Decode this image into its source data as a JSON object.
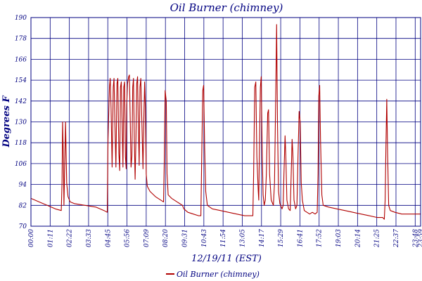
{
  "chart_data": {
    "type": "line",
    "title": "Oil Burner (chimney)",
    "xlabel": "12/19/11 (EST)",
    "ylabel": "Degrees F",
    "ylim": [
      70,
      190
    ],
    "xlim": [
      0,
      1440
    ],
    "yticks": [
      70,
      82,
      94,
      106,
      118,
      130,
      142,
      154,
      166,
      178,
      190
    ],
    "xticks": [
      {
        "t": 0,
        "label": "00:00"
      },
      {
        "t": 71,
        "label": "01:11"
      },
      {
        "t": 142,
        "label": "02:22"
      },
      {
        "t": 213,
        "label": "03:33"
      },
      {
        "t": 284,
        "label": "04:45"
      },
      {
        "t": 355,
        "label": "05:56"
      },
      {
        "t": 426,
        "label": "07:09"
      },
      {
        "t": 497,
        "label": "08:20"
      },
      {
        "t": 568,
        "label": "09:31"
      },
      {
        "t": 639,
        "label": "10:43"
      },
      {
        "t": 710,
        "label": "11:54"
      },
      {
        "t": 781,
        "label": "13:05"
      },
      {
        "t": 852,
        "label": "14:17"
      },
      {
        "t": 923,
        "label": "15:29"
      },
      {
        "t": 994,
        "label": "16:41"
      },
      {
        "t": 1065,
        "label": "17:52"
      },
      {
        "t": 1136,
        "label": "19:03"
      },
      {
        "t": 1207,
        "label": "20:14"
      },
      {
        "t": 1278,
        "label": "21:25"
      },
      {
        "t": 1349,
        "label": "22:37"
      },
      {
        "t": 1420,
        "label": "23:48"
      },
      {
        "t": 1440,
        "label": "23:59"
      }
    ],
    "grid": true,
    "legend": "bottom-center",
    "color": "#b00000",
    "series": [
      {
        "name": "Oil Burner (chimney)",
        "points": [
          [
            0,
            86
          ],
          [
            30,
            84
          ],
          [
            60,
            82
          ],
          [
            90,
            80
          ],
          [
            112,
            79
          ],
          [
            115,
            95
          ],
          [
            117,
            130
          ],
          [
            120,
            108
          ],
          [
            122,
            82
          ],
          [
            126,
            115
          ],
          [
            128,
            130
          ],
          [
            132,
            95
          ],
          [
            137,
            87
          ],
          [
            145,
            84
          ],
          [
            160,
            83
          ],
          [
            200,
            82
          ],
          [
            240,
            81
          ],
          [
            270,
            79
          ],
          [
            282,
            78
          ],
          [
            285,
            120
          ],
          [
            290,
            150
          ],
          [
            293,
            155
          ],
          [
            296,
            138
          ],
          [
            300,
            104
          ],
          [
            304,
            150
          ],
          [
            307,
            155
          ],
          [
            311,
            125
          ],
          [
            314,
            104
          ],
          [
            318,
            152
          ],
          [
            321,
            155
          ],
          [
            325,
            112
          ],
          [
            328,
            102
          ],
          [
            331,
            150
          ],
          [
            334,
            153
          ],
          [
            337,
            128
          ],
          [
            340,
            104
          ],
          [
            343,
            150
          ],
          [
            346,
            153
          ],
          [
            349,
            110
          ],
          [
            352,
            103
          ],
          [
            354,
            140
          ],
          [
            357,
            152
          ],
          [
            361,
            156
          ],
          [
            364,
            157
          ],
          [
            367,
            130
          ],
          [
            370,
            104
          ],
          [
            373,
            110
          ],
          [
            376,
            150
          ],
          [
            379,
            155
          ],
          [
            382,
            120
          ],
          [
            385,
            97
          ],
          [
            388,
            120
          ],
          [
            391,
            152
          ],
          [
            394,
            156
          ],
          [
            397,
            128
          ],
          [
            400,
            105
          ],
          [
            403,
            150
          ],
          [
            406,
            155
          ],
          [
            410,
            130
          ],
          [
            414,
            103
          ],
          [
            417,
            130
          ],
          [
            420,
            153
          ],
          [
            423,
            138
          ],
          [
            426,
            100
          ],
          [
            430,
            93
          ],
          [
            440,
            90
          ],
          [
            460,
            87
          ],
          [
            480,
            85
          ],
          [
            490,
            84
          ],
          [
            493,
            110
          ],
          [
            496,
            148
          ],
          [
            500,
            142
          ],
          [
            503,
            100
          ],
          [
            507,
            88
          ],
          [
            520,
            86
          ],
          [
            540,
            84
          ],
          [
            560,
            82
          ],
          [
            565,
            80
          ],
          [
            580,
            78
          ],
          [
            600,
            77
          ],
          [
            620,
            76
          ],
          [
            628,
            76
          ],
          [
            631,
            110
          ],
          [
            635,
            148
          ],
          [
            638,
            151
          ],
          [
            642,
            115
          ],
          [
            646,
            90
          ],
          [
            652,
            82
          ],
          [
            670,
            80
          ],
          [
            700,
            79
          ],
          [
            730,
            78
          ],
          [
            760,
            77
          ],
          [
            790,
            76
          ],
          [
            820,
            76
          ],
          [
            823,
            100
          ],
          [
            827,
            150
          ],
          [
            831,
            153
          ],
          [
            835,
            110
          ],
          [
            840,
            90
          ],
          [
            842,
            85
          ],
          [
            844,
            110
          ],
          [
            848,
            150
          ],
          [
            851,
            156
          ],
          [
            855,
            110
          ],
          [
            858,
            88
          ],
          [
            862,
            82
          ],
          [
            866,
            85
          ],
          [
            870,
            100
          ],
          [
            875,
            135
          ],
          [
            878,
            137
          ],
          [
            882,
            100
          ],
          [
            888,
            85
          ],
          [
            896,
            82
          ],
          [
            900,
            95
          ],
          [
            905,
            150
          ],
          [
            908,
            186
          ],
          [
            911,
            130
          ],
          [
            915,
            90
          ],
          [
            920,
            83
          ],
          [
            928,
            80
          ],
          [
            932,
            82
          ],
          [
            935,
            100
          ],
          [
            939,
            122
          ],
          [
            942,
            110
          ],
          [
            946,
            85
          ],
          [
            952,
            80
          ],
          [
            958,
            79
          ],
          [
            961,
            95
          ],
          [
            965,
            120
          ],
          [
            968,
            112
          ],
          [
            972,
            85
          ],
          [
            978,
            80
          ],
          [
            983,
            82
          ],
          [
            987,
            110
          ],
          [
            991,
            136
          ],
          [
            995,
            130
          ],
          [
            999,
            95
          ],
          [
            1003,
            85
          ],
          [
            1010,
            79
          ],
          [
            1020,
            78
          ],
          [
            1030,
            77
          ],
          [
            1040,
            78
          ],
          [
            1050,
            77
          ],
          [
            1058,
            78
          ],
          [
            1061,
            100
          ],
          [
            1064,
            145
          ],
          [
            1067,
            151
          ],
          [
            1070,
            120
          ],
          [
            1075,
            88
          ],
          [
            1080,
            82
          ],
          [
            1100,
            81
          ],
          [
            1130,
            80
          ],
          [
            1160,
            79
          ],
          [
            1190,
            78
          ],
          [
            1220,
            77
          ],
          [
            1250,
            76
          ],
          [
            1280,
            75
          ],
          [
            1300,
            75
          ],
          [
            1306,
            74
          ],
          [
            1309,
            85
          ],
          [
            1312,
            118
          ],
          [
            1315,
            143
          ],
          [
            1318,
            112
          ],
          [
            1322,
            82
          ],
          [
            1328,
            79
          ],
          [
            1345,
            78
          ],
          [
            1370,
            77
          ],
          [
            1400,
            77
          ],
          [
            1420,
            77
          ],
          [
            1440,
            77
          ]
        ]
      }
    ]
  }
}
